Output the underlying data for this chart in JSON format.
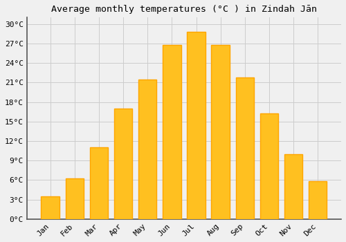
{
  "title": "Average monthly temperatures (°C ) in Zindah Jān",
  "months": [
    "Jan",
    "Feb",
    "Mar",
    "Apr",
    "May",
    "Jun",
    "Jul",
    "Aug",
    "Sep",
    "Oct",
    "Nov",
    "Dec"
  ],
  "values": [
    3.5,
    6.2,
    11.0,
    17.0,
    21.5,
    26.8,
    28.8,
    26.8,
    21.8,
    16.2,
    10.0,
    5.8
  ],
  "bar_color": "#FFC020",
  "bar_edge_color": "#FFA500",
  "background_color": "#F0F0F0",
  "grid_color": "#CCCCCC",
  "ylim": [
    0,
    31
  ],
  "yticks": [
    0,
    3,
    6,
    9,
    12,
    15,
    18,
    21,
    24,
    27,
    30
  ],
  "ytick_labels": [
    "0°C",
    "3°C",
    "6°C",
    "9°C",
    "12°C",
    "15°C",
    "18°C",
    "21°C",
    "24°C",
    "27°C",
    "30°C"
  ],
  "title_fontsize": 9.5,
  "tick_fontsize": 8,
  "font_family": "monospace",
  "bar_width": 0.75
}
